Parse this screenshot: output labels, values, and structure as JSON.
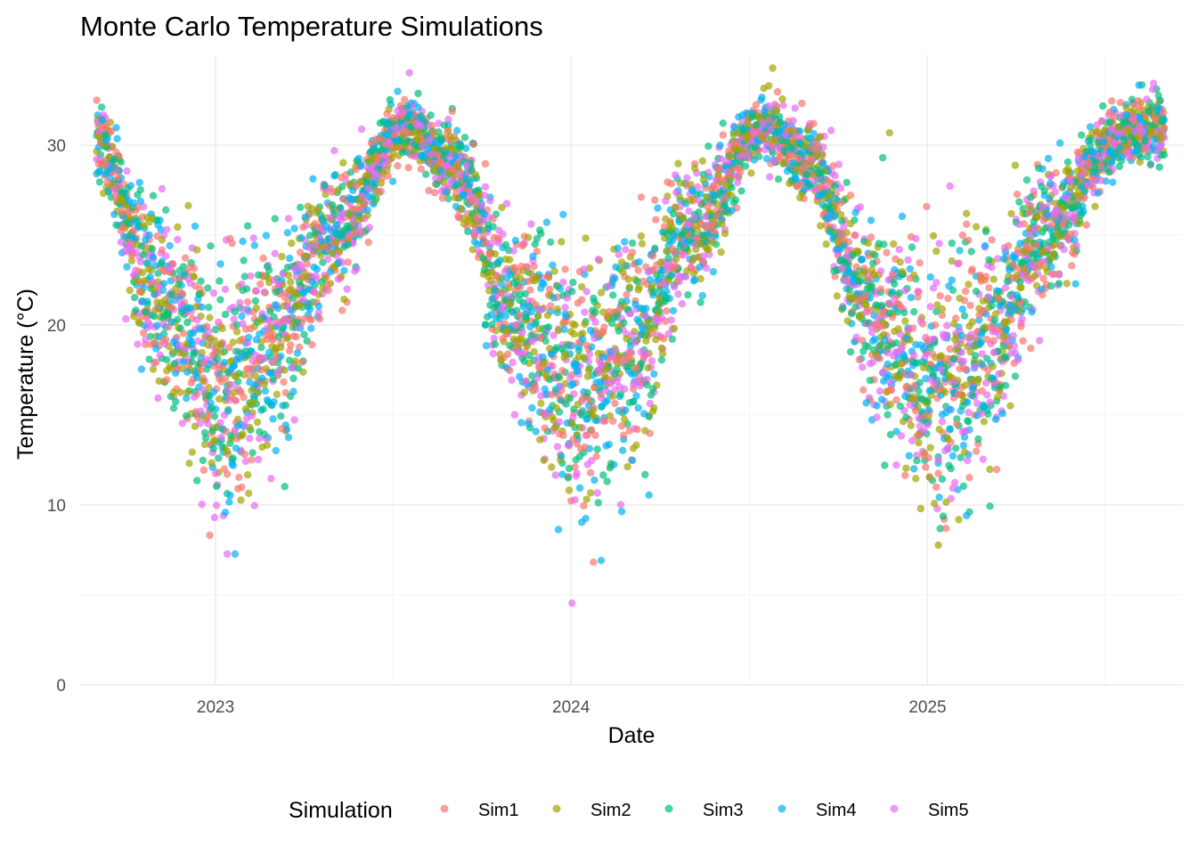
{
  "chart_data": {
    "type": "scatter",
    "title": "Monte Carlo Temperature Simulations",
    "xlabel": "Date",
    "ylabel": "Temperature (°C)",
    "x_type": "date",
    "xlim": [
      "2022-08-15",
      "2025-09-20"
    ],
    "ylim": [
      0,
      35
    ],
    "x_ticks": [
      "2023",
      "2024",
      "2025"
    ],
    "y_ticks": [
      0,
      10,
      20,
      30
    ],
    "grid": true,
    "legend": {
      "title": "Simulation",
      "position": "bottom"
    },
    "point_alpha": 0.7,
    "date_range": [
      "2022-09-01",
      "2025-09-01"
    ],
    "series": [
      {
        "name": "Sim1",
        "color": "#F8766D"
      },
      {
        "name": "Sim2",
        "color": "#A3A500"
      },
      {
        "name": "Sim3",
        "color": "#00BF7D"
      },
      {
        "name": "Sim4",
        "color": "#00B0F6"
      },
      {
        "name": "Sim5",
        "color": "#E76BF3"
      }
    ],
    "seasonal_mean_profile": [
      {
        "x": "2022-09-01",
        "y": 30.0
      },
      {
        "x": "2022-11-01",
        "y": 22.0
      },
      {
        "x": "2023-01-15",
        "y": 16.0
      },
      {
        "x": "2023-03-01",
        "y": 19.0
      },
      {
        "x": "2023-05-01",
        "y": 25.0
      },
      {
        "x": "2023-07-15",
        "y": 31.0
      },
      {
        "x": "2023-09-01",
        "y": 29.0
      },
      {
        "x": "2023-11-01",
        "y": 21.0
      },
      {
        "x": "2024-01-15",
        "y": 16.5
      },
      {
        "x": "2024-03-01",
        "y": 18.5
      },
      {
        "x": "2024-05-01",
        "y": 25.0
      },
      {
        "x": "2024-07-15",
        "y": 31.0
      },
      {
        "x": "2024-09-01",
        "y": 29.0
      },
      {
        "x": "2024-11-01",
        "y": 21.0
      },
      {
        "x": "2025-01-15",
        "y": 16.0
      },
      {
        "x": "2025-03-01",
        "y": 18.5
      },
      {
        "x": "2025-05-01",
        "y": 25.0
      },
      {
        "x": "2025-07-15",
        "y": 30.5
      },
      {
        "x": "2025-09-01",
        "y": 31.0
      }
    ]
  }
}
